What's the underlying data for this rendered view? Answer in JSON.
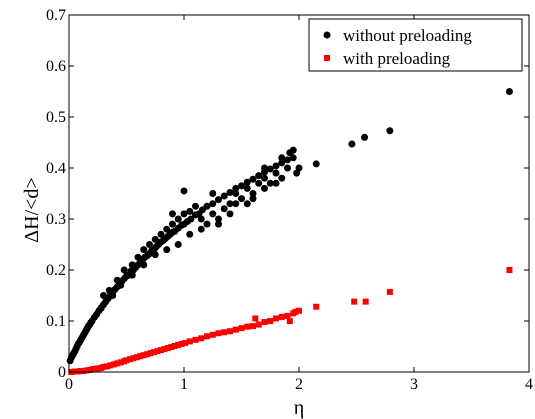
{
  "chart_data": {
    "type": "scatter",
    "title": "",
    "xlabel": "η",
    "ylabel": "ΔH/<d>",
    "xlim": [
      0,
      4
    ],
    "ylim": [
      0,
      0.7
    ],
    "x_ticks": [
      0,
      1,
      2,
      3,
      4
    ],
    "y_ticks": [
      0,
      0.1,
      0.2,
      0.3,
      0.4,
      0.5,
      0.6,
      0.7
    ],
    "x_tick_labels": [
      "0",
      "1",
      "2",
      "3",
      "4"
    ],
    "y_tick_labels": [
      "0",
      "0.1",
      "0.2",
      "0.3",
      "0.4",
      "0.5",
      "0.6",
      "0.7"
    ],
    "grid": false,
    "legend_position": "top-right",
    "series": [
      {
        "name": "without preloading",
        "marker": "circle",
        "color": "#000000",
        "points": [
          [
            0.01,
            0.022
          ],
          [
            0.02,
            0.028
          ],
          [
            0.03,
            0.032
          ],
          [
            0.04,
            0.036
          ],
          [
            0.05,
            0.04
          ],
          [
            0.06,
            0.045
          ],
          [
            0.07,
            0.05
          ],
          [
            0.08,
            0.055
          ],
          [
            0.09,
            0.058
          ],
          [
            0.1,
            0.062
          ],
          [
            0.11,
            0.066
          ],
          [
            0.12,
            0.07
          ],
          [
            0.13,
            0.074
          ],
          [
            0.14,
            0.078
          ],
          [
            0.15,
            0.082
          ],
          [
            0.16,
            0.086
          ],
          [
            0.17,
            0.09
          ],
          [
            0.18,
            0.093
          ],
          [
            0.19,
            0.097
          ],
          [
            0.2,
            0.1
          ],
          [
            0.22,
            0.107
          ],
          [
            0.24,
            0.113
          ],
          [
            0.26,
            0.12
          ],
          [
            0.28,
            0.126
          ],
          [
            0.3,
            0.132
          ],
          [
            0.32,
            0.138
          ],
          [
            0.34,
            0.144
          ],
          [
            0.36,
            0.15
          ],
          [
            0.38,
            0.156
          ],
          [
            0.4,
            0.162
          ],
          [
            0.42,
            0.167
          ],
          [
            0.44,
            0.173
          ],
          [
            0.46,
            0.178
          ],
          [
            0.48,
            0.183
          ],
          [
            0.5,
            0.188
          ],
          [
            0.52,
            0.19
          ],
          [
            0.54,
            0.198
          ],
          [
            0.56,
            0.2
          ],
          [
            0.58,
            0.205
          ],
          [
            0.6,
            0.21
          ],
          [
            0.62,
            0.215
          ],
          [
            0.64,
            0.22
          ],
          [
            0.66,
            0.225
          ],
          [
            0.68,
            0.228
          ],
          [
            0.7,
            0.232
          ],
          [
            0.72,
            0.238
          ],
          [
            0.74,
            0.24
          ],
          [
            0.76,
            0.246
          ],
          [
            0.78,
            0.25
          ],
          [
            0.8,
            0.255
          ],
          [
            0.82,
            0.258
          ],
          [
            0.84,
            0.262
          ],
          [
            0.86,
            0.266
          ],
          [
            0.88,
            0.27
          ],
          [
            0.9,
            0.274
          ],
          [
            0.92,
            0.276
          ],
          [
            0.95,
            0.282
          ],
          [
            0.98,
            0.288
          ],
          [
            1.0,
            0.29
          ],
          [
            1.03,
            0.295
          ],
          [
            1.06,
            0.3
          ],
          [
            1.1,
            0.308
          ],
          [
            1.13,
            0.31
          ],
          [
            1.16,
            0.318
          ],
          [
            1.2,
            0.325
          ],
          [
            1.25,
            0.33
          ],
          [
            1.3,
            0.338
          ],
          [
            1.35,
            0.345
          ],
          [
            1.4,
            0.352
          ],
          [
            1.45,
            0.36
          ],
          [
            1.5,
            0.365
          ],
          [
            1.55,
            0.372
          ],
          [
            1.6,
            0.378
          ],
          [
            1.65,
            0.385
          ],
          [
            1.7,
            0.392
          ],
          [
            1.75,
            0.398
          ],
          [
            1.8,
            0.404
          ],
          [
            1.85,
            0.41
          ],
          [
            1.9,
            0.416
          ],
          [
            1.95,
            0.42
          ],
          [
            0.3,
            0.15
          ],
          [
            0.35,
            0.16
          ],
          [
            0.42,
            0.18
          ],
          [
            0.48,
            0.2
          ],
          [
            0.55,
            0.21
          ],
          [
            0.6,
            0.225
          ],
          [
            0.65,
            0.24
          ],
          [
            0.7,
            0.25
          ],
          [
            0.75,
            0.26
          ],
          [
            0.8,
            0.27
          ],
          [
            0.85,
            0.28
          ],
          [
            0.9,
            0.29
          ],
          [
            0.95,
            0.3
          ],
          [
            1.0,
            0.31
          ],
          [
            1.05,
            0.315
          ],
          [
            1.1,
            0.325
          ],
          [
            1.15,
            0.3
          ],
          [
            1.2,
            0.29
          ],
          [
            1.25,
            0.31
          ],
          [
            1.3,
            0.3
          ],
          [
            1.35,
            0.32
          ],
          [
            1.4,
            0.33
          ],
          [
            1.45,
            0.35
          ],
          [
            1.5,
            0.34
          ],
          [
            1.55,
            0.36
          ],
          [
            1.6,
            0.35
          ],
          [
            1.65,
            0.37
          ],
          [
            1.7,
            0.38
          ],
          [
            1.75,
            0.37
          ],
          [
            1.8,
            0.39
          ],
          [
            1.85,
            0.38
          ],
          [
            1.9,
            0.4
          ],
          [
            1.95,
            0.435
          ],
          [
            1.98,
            0.39
          ],
          [
            2.0,
            0.4
          ],
          [
            1.92,
            0.43
          ],
          [
            1.7,
            0.36
          ],
          [
            1.6,
            0.34
          ],
          [
            1.4,
            0.31
          ],
          [
            1.3,
            0.29
          ],
          [
            1.15,
            0.28
          ],
          [
            1.05,
            0.27
          ],
          [
            0.95,
            0.25
          ],
          [
            0.85,
            0.24
          ],
          [
            0.75,
            0.23
          ],
          [
            0.65,
            0.21
          ],
          [
            0.55,
            0.19
          ],
          [
            0.45,
            0.17
          ],
          [
            0.38,
            0.15
          ],
          [
            0.28,
            0.125
          ],
          [
            1.0,
            0.355
          ],
          [
            0.9,
            0.31
          ],
          [
            1.25,
            0.35
          ],
          [
            1.45,
            0.33
          ],
          [
            1.55,
            0.33
          ],
          [
            1.8,
            0.37
          ],
          [
            1.7,
            0.4
          ],
          [
            1.85,
            0.42
          ],
          [
            2.15,
            0.408
          ],
          [
            2.46,
            0.447
          ],
          [
            2.57,
            0.46
          ],
          [
            2.79,
            0.473
          ],
          [
            3.83,
            0.55
          ]
        ]
      },
      {
        "name": "with preloading",
        "marker": "square",
        "color": "#ff0000",
        "points": [
          [
            0.02,
            0.0
          ],
          [
            0.05,
            0.001
          ],
          [
            0.08,
            0.001
          ],
          [
            0.1,
            0.002
          ],
          [
            0.12,
            0.002
          ],
          [
            0.15,
            0.003
          ],
          [
            0.18,
            0.004
          ],
          [
            0.2,
            0.005
          ],
          [
            0.22,
            0.006
          ],
          [
            0.25,
            0.007
          ],
          [
            0.28,
            0.008
          ],
          [
            0.3,
            0.01
          ],
          [
            0.33,
            0.011
          ],
          [
            0.36,
            0.013
          ],
          [
            0.39,
            0.015
          ],
          [
            0.42,
            0.017
          ],
          [
            0.45,
            0.019
          ],
          [
            0.48,
            0.021
          ],
          [
            0.5,
            0.023
          ],
          [
            0.53,
            0.025
          ],
          [
            0.56,
            0.027
          ],
          [
            0.59,
            0.029
          ],
          [
            0.62,
            0.031
          ],
          [
            0.65,
            0.033
          ],
          [
            0.68,
            0.035
          ],
          [
            0.71,
            0.037
          ],
          [
            0.74,
            0.039
          ],
          [
            0.77,
            0.041
          ],
          [
            0.8,
            0.043
          ],
          [
            0.83,
            0.045
          ],
          [
            0.86,
            0.047
          ],
          [
            0.89,
            0.049
          ],
          [
            0.92,
            0.051
          ],
          [
            0.95,
            0.053
          ],
          [
            0.98,
            0.055
          ],
          [
            1.01,
            0.057
          ],
          [
            1.05,
            0.06
          ],
          [
            1.1,
            0.063
          ],
          [
            1.15,
            0.066
          ],
          [
            1.2,
            0.07
          ],
          [
            1.25,
            0.073
          ],
          [
            1.3,
            0.076
          ],
          [
            1.35,
            0.078
          ],
          [
            1.4,
            0.08
          ],
          [
            1.45,
            0.083
          ],
          [
            1.5,
            0.086
          ],
          [
            1.55,
            0.089
          ],
          [
            1.6,
            0.09
          ],
          [
            1.65,
            0.093
          ],
          [
            1.7,
            0.098
          ],
          [
            1.75,
            0.1
          ],
          [
            1.8,
            0.105
          ],
          [
            1.85,
            0.108
          ],
          [
            1.9,
            0.11
          ],
          [
            1.95,
            0.115
          ],
          [
            2.0,
            0.12
          ],
          [
            1.92,
            0.1
          ],
          [
            1.97,
            0.118
          ],
          [
            1.62,
            0.105
          ],
          [
            2.15,
            0.128
          ],
          [
            2.48,
            0.138
          ],
          [
            2.58,
            0.138
          ],
          [
            2.79,
            0.157
          ],
          [
            3.83,
            0.2
          ]
        ]
      }
    ]
  }
}
